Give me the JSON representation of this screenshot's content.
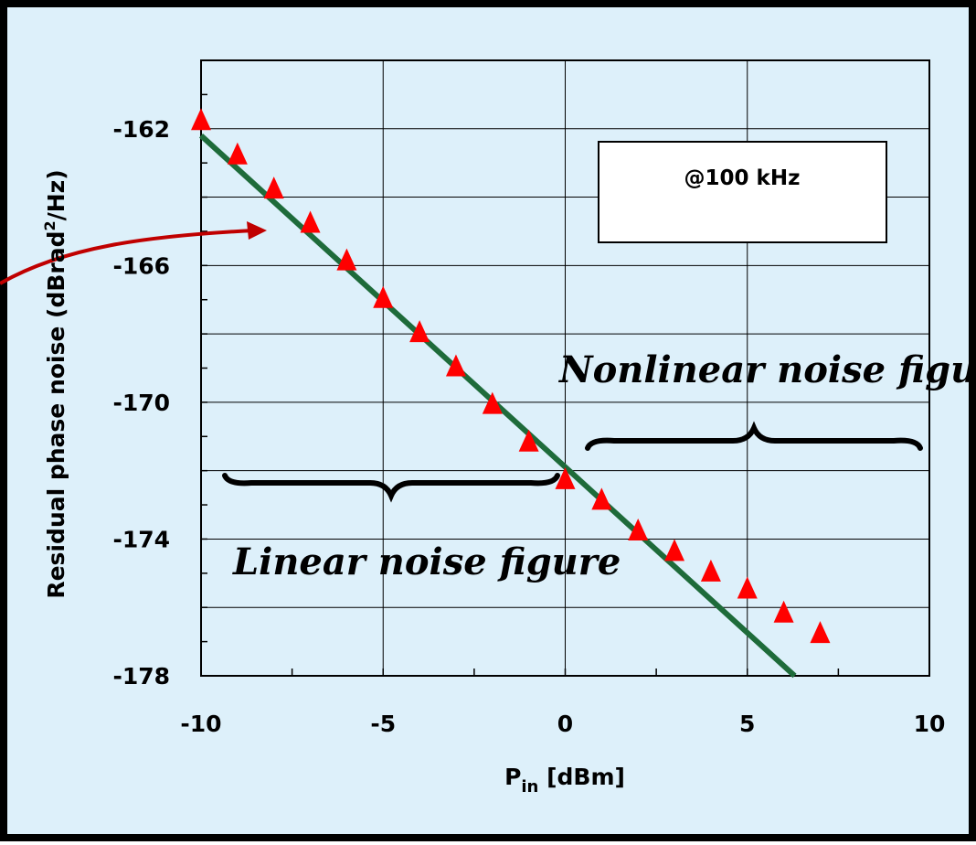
{
  "chart_data": {
    "type": "scatter",
    "xlabel": {
      "main": "P",
      "sub": "in",
      "rest": " [dBm]"
    },
    "ylabel": {
      "main": "Residual phase noise (dBrad",
      "sup": "2",
      "rest": "/Hz)"
    },
    "xlim": [
      -10,
      10
    ],
    "ylim": [
      -178,
      -160
    ],
    "x_ticks": [
      "-10",
      "-5",
      "0",
      "5",
      "10"
    ],
    "x_tick_values": [
      -10,
      -5,
      0,
      5,
      10
    ],
    "y_ticks": [
      "-162",
      "-166",
      "-170",
      "-174",
      "-178"
    ],
    "y_tick_values": [
      -162,
      -166,
      -170,
      -174,
      -178
    ],
    "grid": true,
    "series": [
      {
        "kind": "markers",
        "marker": "triangle",
        "color": "#ff0000",
        "x": [
          -10,
          -9,
          -8,
          -7,
          -6,
          -5,
          -4,
          -3,
          -2,
          -1,
          0,
          1,
          2,
          3,
          4,
          5,
          6,
          7
        ],
        "y": [
          -161.8,
          -162.8,
          -163.8,
          -164.8,
          -165.9,
          -167,
          -168,
          -169,
          -170.1,
          -171.2,
          -172.3,
          -172.9,
          -173.8,
          -174.4,
          -175,
          -175.5,
          -176.2,
          -176.8
        ]
      },
      {
        "kind": "line",
        "color": "#1e6b3a",
        "x": [
          -10,
          6.3
        ],
        "y": [
          -162.2,
          -178
        ]
      }
    ],
    "inset_box": "@100 kHz",
    "annotations": {
      "linear": "Linear noise figure",
      "nonlinear": "Nonlinear noise figure"
    },
    "colors": {
      "panel_bg": "#ddf0fa",
      "border": "#000000",
      "arrow": "#c00000",
      "brace": "#000000"
    }
  }
}
